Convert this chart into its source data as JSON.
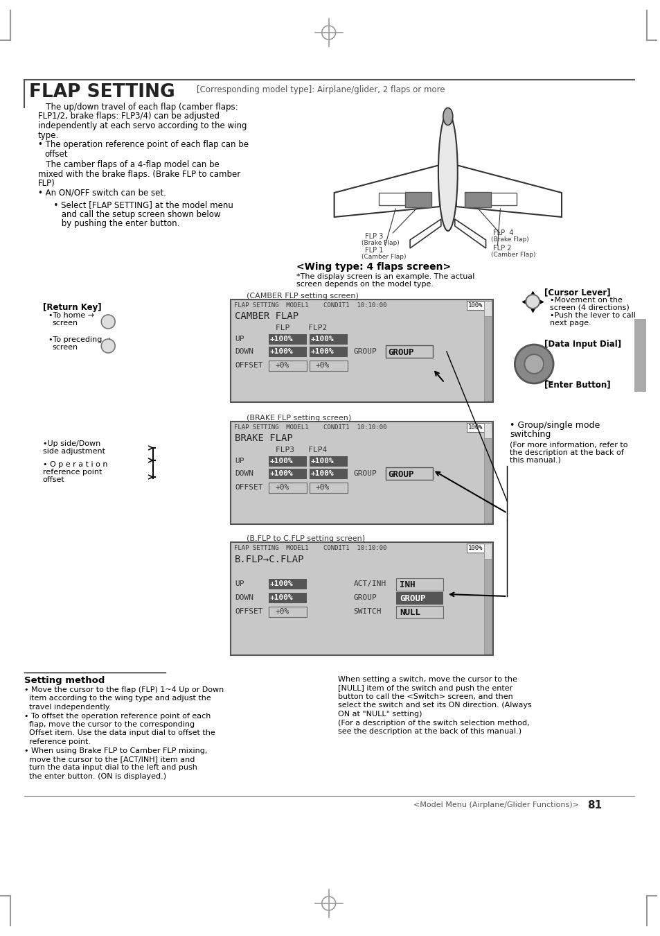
{
  "title": "FLAP SETTING",
  "subtitle": "[Corresponding model type]: Airplane/glider, 2 flaps or more",
  "bg_color": "#ffffff",
  "screen_bg": "#c8c8c8",
  "page_number": "81",
  "footer_text": "<Model Menu (Airplane/Glider Functions)>",
  "body_text_left": [
    "   The up/down travel of each flap (camber flaps:",
    "FLP1/2, brake flaps: FLP3/4) can be adjusted",
    "independently at each servo according to the wing",
    "type.",
    "The operation reference point of each flap can be",
    "offset",
    "   The camber flaps of a 4-flap model can be",
    "mixed with the brake flaps. (Brake FLP to camber",
    "FLP)",
    "An ON/OFF switch can be set."
  ],
  "select_text": [
    "Select [FLAP SETTING] at the model menu",
    "and call the setup screen shown below",
    "by pushing the enter button."
  ],
  "wing_type_heading": "<Wing type: 4 flaps screen>",
  "wing_type_note1": "*The display screen is an example. The actual",
  "wing_type_note2": "screen depends on the model type.",
  "cursor_lever_label": "[Cursor Lever]",
  "cursor_lever_lines": [
    "•Movement on the",
    "screen (4 directions)",
    "•Push the lever to call",
    "next page."
  ],
  "data_input_label": "[Data Input Dial]",
  "enter_button_label": "[Enter Button]",
  "return_key_label": "[Return Key]",
  "return_key_lines": [
    "•To home",
    "screen",
    "•To preceding",
    "screen"
  ],
  "camber_label": "(CAMBER FLP setting screen)",
  "brake_label": "(BRAKE FLP setting screen)",
  "bflp_label": "(B.FLP to C.FLP setting screen)",
  "group_mode_title": "• Group/single mode",
  "group_mode_sub": "switching",
  "group_mode_note": [
    "(For more information, refer to",
    "the description at the back of",
    "this manual.)"
  ],
  "updown_label1": "•Up side/Down",
  "updown_label2": "side adjustment",
  "operation_label1": "• O p e r a t i o n",
  "operation_label2": "reference point",
  "operation_label3": "offset",
  "setting_method_title": "Setting method",
  "setting_left": [
    "• Move the cursor to the flap (FLP) 1~4 Up or Down",
    "  item according to the wing type and adjust the",
    "  travel independently.",
    "• To offset the operation reference point of each",
    "  flap, move the cursor to the corresponding",
    "  Offset item. Use the data input dial to offset the",
    "  reference point.",
    "• When using Brake FLP to Camber FLP mixing,",
    "  move the cursor to the [ACT/INH] item and",
    "  turn the data input dial to the left and push",
    "  the enter button. (ON is displayed.)"
  ],
  "setting_right": [
    "When setting a switch, move the cursor to the",
    "[NULL] item of the switch and push the enter",
    "button to call the <Switch> screen, and then",
    "select the switch and set its ON direction. (Always",
    "ON at \"NULL\" setting)",
    "(For a description of the switch selection method,",
    "see the description at the back of this manual.)"
  ]
}
